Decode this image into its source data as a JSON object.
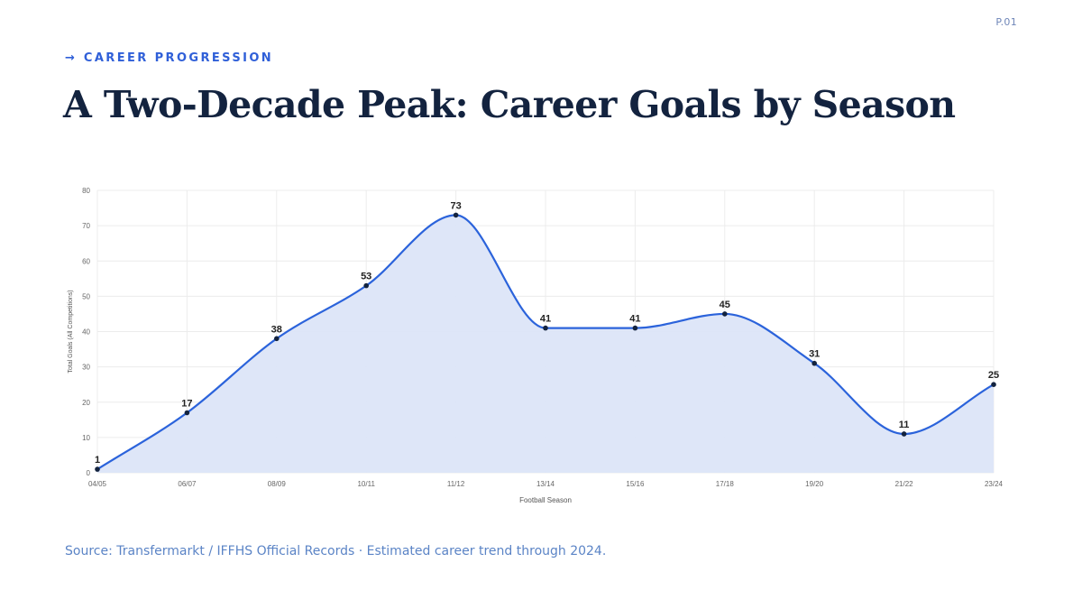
{
  "page": {
    "page_number": "P.01",
    "eyebrow_arrow": "→",
    "eyebrow": "CAREER PROGRESSION",
    "title": "A Two-Decade Peak: Career Goals by Season",
    "source": "Source: Transfermarkt / IFFHS Official Records · Estimated career trend through 2024."
  },
  "colors": {
    "accent": "#2f5fd8",
    "line": "#2b63db",
    "fill": "#dce5f8",
    "point": "#13233f",
    "grid": "#ececec",
    "title": "#13233f"
  },
  "chart_data": {
    "type": "area",
    "categories": [
      "04/05",
      "06/07",
      "08/09",
      "10/11",
      "11/12",
      "13/14",
      "15/16",
      "17/18",
      "19/20",
      "21/22",
      "23/24"
    ],
    "series": [
      {
        "values": [
          1,
          17,
          38,
          53,
          73,
          41,
          41,
          45,
          31,
          11,
          25
        ]
      }
    ],
    "title": "",
    "xlabel": "Football Season",
    "ylabel": "Total Goals (All Competitions)",
    "ylim": [
      0,
      80
    ],
    "yticks": [
      0,
      10,
      20,
      30,
      40,
      50,
      60,
      70,
      80
    ],
    "grid": true,
    "data_labels": true,
    "smooth": true
  }
}
